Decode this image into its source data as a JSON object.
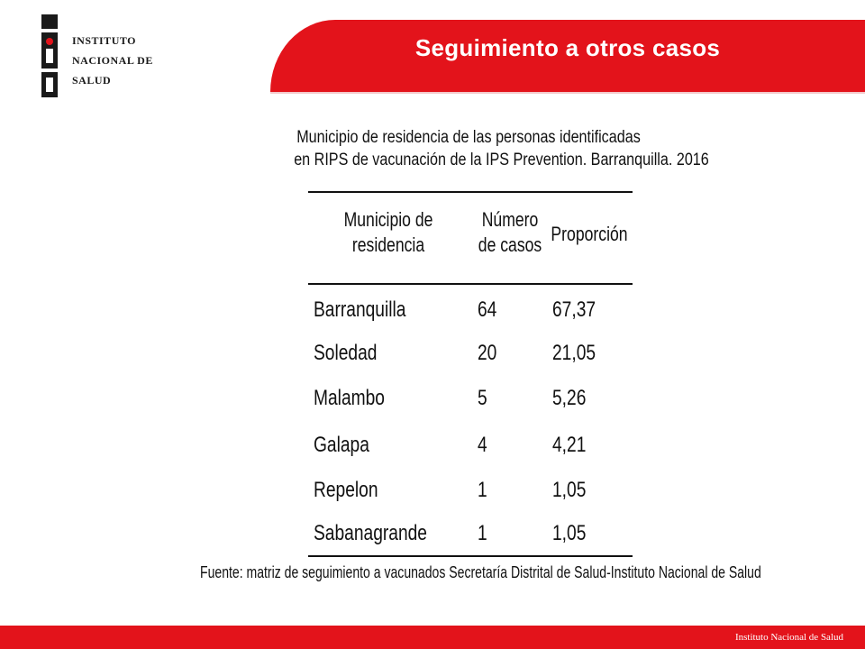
{
  "logo": {
    "line1": "Instituto",
    "line2": "Nacional de",
    "line3": "Salud"
  },
  "header": {
    "title": "Seguimiento a otros casos"
  },
  "table": {
    "title_line1": "Municipio de residencia de las personas identificadas",
    "title_line2": "en RIPS de vacunación de la IPS Prevention. Barranquilla. 2016",
    "columns": {
      "municipio_l1": "Municipio de",
      "municipio_l2": "residencia",
      "numero_l1": "Número",
      "numero_l2": "de casos",
      "proporcion": "Proporción"
    },
    "rows": [
      {
        "municipio": "Barranquilla",
        "casos": "64",
        "proporcion": "67,37"
      },
      {
        "municipio": "Soledad",
        "casos": "20",
        "proporcion": "21,05"
      },
      {
        "municipio": "Malambo",
        "casos": "5",
        "proporcion": "5,26"
      },
      {
        "municipio": "Galapa",
        "casos": "4",
        "proporcion": "4,21"
      },
      {
        "municipio": "Repelon",
        "casos": "1",
        "proporcion": "1,05"
      },
      {
        "municipio": "Sabanagrande",
        "casos": "1",
        "proporcion": "1,05"
      }
    ],
    "source": "Fuente: matriz de seguimiento a vacunados Secretaría Distrital de Salud-Instituto Nacional de Salud"
  },
  "footer": {
    "text": "Instituto Nacional de Salud"
  },
  "colors": {
    "brand_red": "#e3131b",
    "text": "#111111"
  }
}
